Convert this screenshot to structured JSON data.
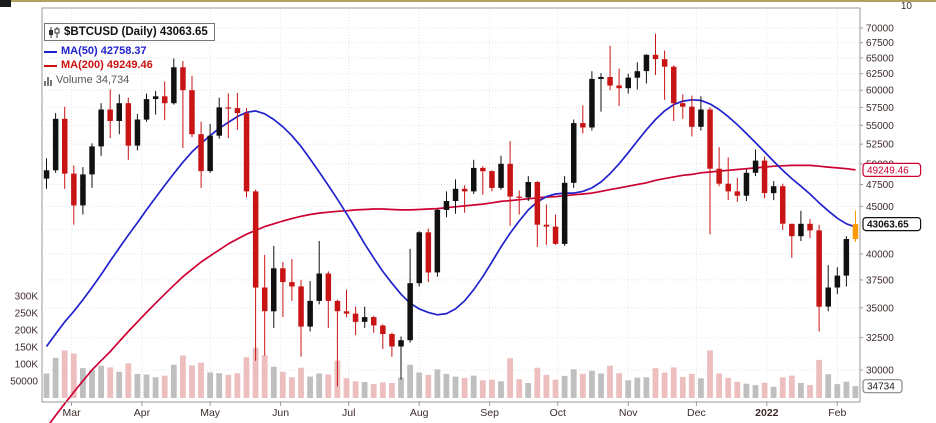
{
  "legend": {
    "symbol": "$BTCUSD (Daily) 43063.65",
    "ma50_label": "MA(50) 42758.37",
    "ma200_label": "MA(200) 49249.46",
    "volume_label": "Volume 34,734"
  },
  "badges": {
    "ma200": "49249.46",
    "last": "43063.65",
    "volume": "34734"
  },
  "axes": {
    "top_right_partial": "10"
  },
  "colors": {
    "up": "#111111",
    "down": "#c81414",
    "last_candle": "#ff9900",
    "ma50": "#2222cc",
    "ma200": "#cc0033",
    "vol_up": "#b9b9b9",
    "vol_down": "#eab8b8",
    "grid": "#e4e4e4",
    "frame": "#999999",
    "axis_text": "#3d2b2b"
  },
  "chart_data": {
    "type": "candlestick",
    "title": "$BTCUSD (Daily) 43063.65",
    "symbol": "$BTCUSD",
    "timeframe": "Daily",
    "last_price": 43063.65,
    "ma50_value": 42758.37,
    "ma200_value": 49249.46,
    "last_volume": 34734,
    "sample_interval_days": 4,
    "start_date": "2021-02-16",
    "y_axis": {
      "min": 30000,
      "max": 70000,
      "step": 2500,
      "scale": "log",
      "side": "right"
    },
    "y_ticks": [
      {
        "value": 70000,
        "label": "70000"
      },
      {
        "value": 67500,
        "label": "67500"
      },
      {
        "value": 65000,
        "label": "65000"
      },
      {
        "value": 62500,
        "label": "62500"
      },
      {
        "value": 60000,
        "label": "60000"
      },
      {
        "value": 57500,
        "label": "57500"
      },
      {
        "value": 55000,
        "label": "55000"
      },
      {
        "value": 52500,
        "label": "52500"
      },
      {
        "value": 50000,
        "label": "50000"
      },
      {
        "value": 47500,
        "label": "47500"
      },
      {
        "value": 45000,
        "label": "45000"
      },
      {
        "value": 42500,
        "label": ""
      },
      {
        "value": 40000,
        "label": "40000"
      },
      {
        "value": 37500,
        "label": "37500"
      },
      {
        "value": 35000,
        "label": "35000"
      },
      {
        "value": 32500,
        "label": "32500"
      },
      {
        "value": 30000,
        "label": "30000"
      }
    ],
    "volume_axis": [
      {
        "label": "300K",
        "value": 300
      },
      {
        "label": "250K",
        "value": 250
      },
      {
        "label": "200K",
        "value": 200
      },
      {
        "label": "150K",
        "value": 150
      },
      {
        "label": "100K",
        "value": 100
      },
      {
        "label": "50000",
        "value": 50
      }
    ],
    "volume_in_thousands": true,
    "x_ticks": [
      {
        "label": "Mar",
        "i": 3.25
      },
      {
        "label": "Apr",
        "i": 11
      },
      {
        "label": "May",
        "i": 18.5
      },
      {
        "label": "Jun",
        "i": 26.25
      },
      {
        "label": "Jul",
        "i": 33.75
      },
      {
        "label": "Aug",
        "i": 41.5
      },
      {
        "label": "Sep",
        "i": 49.25
      },
      {
        "label": "Oct",
        "i": 56.75
      },
      {
        "label": "Nov",
        "i": 64.5
      },
      {
        "label": "Dec",
        "i": 72
      },
      {
        "label": "2022",
        "i": 79.75,
        "bold": true
      },
      {
        "label": "Feb",
        "i": 87.5
      }
    ],
    "candles": [
      [
        48200,
        50700,
        47000,
        49200,
        72
      ],
      [
        49200,
        56700,
        48900,
        55900,
        118
      ],
      [
        55900,
        57600,
        47000,
        48800,
        140
      ],
      [
        48800,
        49800,
        43000,
        45100,
        131
      ],
      [
        45100,
        49600,
        44100,
        48700,
        88
      ],
      [
        48700,
        52600,
        47100,
        52200,
        82
      ],
      [
        52200,
        58100,
        51000,
        57200,
        95
      ],
      [
        57200,
        60100,
        53300,
        55600,
        90
      ],
      [
        55600,
        59400,
        53800,
        58100,
        77
      ],
      [
        58100,
        58900,
        50500,
        52300,
        102
      ],
      [
        52300,
        56600,
        51700,
        55800,
        71
      ],
      [
        55800,
        59500,
        55500,
        58700,
        69
      ],
      [
        58700,
        59900,
        56500,
        59100,
        61
      ],
      [
        59100,
        61300,
        55700,
        58100,
        66
      ],
      [
        58100,
        64900,
        57900,
        63500,
        98
      ],
      [
        63500,
        64500,
        52000,
        60000,
        125
      ],
      [
        60000,
        62200,
        53400,
        53800,
        96
      ],
      [
        53800,
        55500,
        47100,
        49100,
        104
      ],
      [
        49100,
        55200,
        48900,
        53600,
        75
      ],
      [
        53600,
        58900,
        53200,
        57500,
        73
      ],
      [
        57500,
        59500,
        53300,
        57400,
        68
      ],
      [
        57400,
        59600,
        54400,
        56700,
        73
      ],
      [
        56700,
        57400,
        46000,
        46700,
        120
      ],
      [
        46700,
        46900,
        30700,
        36800,
        148
      ],
      [
        36800,
        39900,
        31100,
        34700,
        126
      ],
      [
        34700,
        40800,
        33300,
        38600,
        92
      ],
      [
        38600,
        39200,
        34200,
        37300,
        77
      ],
      [
        37300,
        39500,
        35600,
        36900,
        61
      ],
      [
        36900,
        37500,
        31000,
        33400,
        89
      ],
      [
        33400,
        37400,
        33000,
        35600,
        63
      ],
      [
        35600,
        41300,
        35300,
        38100,
        72
      ],
      [
        38100,
        38300,
        33300,
        35600,
        69
      ],
      [
        35600,
        35700,
        28800,
        34700,
        110
      ],
      [
        34700,
        36600,
        34200,
        34500,
        58
      ],
      [
        34500,
        35100,
        32700,
        33800,
        49
      ],
      [
        33800,
        35100,
        33300,
        34200,
        47
      ],
      [
        34200,
        34300,
        32900,
        33500,
        41
      ],
      [
        33500,
        33600,
        31600,
        32800,
        46
      ],
      [
        32800,
        32900,
        31000,
        31800,
        44
      ],
      [
        31800,
        32600,
        29300,
        32300,
        60
      ],
      [
        32300,
        40500,
        32100,
        37200,
        98
      ],
      [
        37200,
        42300,
        36900,
        42200,
        75
      ],
      [
        42200,
        42600,
        37300,
        38200,
        68
      ],
      [
        38200,
        44700,
        37800,
        44600,
        84
      ],
      [
        44600,
        46700,
        43800,
        45600,
        71
      ],
      [
        45600,
        48100,
        44200,
        47000,
        63
      ],
      [
        47000,
        47400,
        44300,
        46700,
        59
      ],
      [
        46700,
        50500,
        46400,
        49500,
        66
      ],
      [
        49500,
        49700,
        46300,
        49100,
        52
      ],
      [
        49100,
        49200,
        46700,
        47100,
        54
      ],
      [
        47100,
        51000,
        46900,
        50000,
        49
      ],
      [
        50000,
        52900,
        42900,
        46100,
        117
      ],
      [
        46100,
        46800,
        44100,
        46000,
        55
      ],
      [
        46000,
        48500,
        45600,
        47800,
        44
      ],
      [
        47800,
        47900,
        40700,
        43000,
        89
      ],
      [
        43000,
        45200,
        40900,
        42800,
        68
      ],
      [
        42800,
        44100,
        40900,
        41000,
        54
      ],
      [
        41000,
        48500,
        40800,
        47700,
        65
      ],
      [
        47700,
        55800,
        47100,
        55300,
        84
      ],
      [
        55300,
        57800,
        53900,
        54700,
        71
      ],
      [
        54700,
        62900,
        54300,
        61700,
        80
      ],
      [
        61700,
        62600,
        56900,
        62000,
        72
      ],
      [
        62000,
        67000,
        60000,
        60700,
        95
      ],
      [
        60700,
        63300,
        57700,
        60300,
        73
      ],
      [
        60300,
        62500,
        59500,
        61900,
        52
      ],
      [
        61900,
        64300,
        60100,
        62900,
        60
      ],
      [
        62900,
        65600,
        61000,
        65500,
        61
      ],
      [
        65500,
        69000,
        62300,
        64800,
        88
      ],
      [
        64800,
        66200,
        58600,
        63600,
        75
      ],
      [
        63600,
        63800,
        55600,
        58100,
        90
      ],
      [
        58100,
        59400,
        55900,
        57600,
        62
      ],
      [
        57600,
        59200,
        53500,
        54800,
        71
      ],
      [
        54800,
        59100,
        54300,
        57200,
        58
      ],
      [
        57200,
        57500,
        42000,
        49400,
        140
      ],
      [
        49400,
        52100,
        47300,
        47600,
        72
      ],
      [
        47600,
        50800,
        45700,
        46700,
        59
      ],
      [
        46700,
        48300,
        45500,
        46200,
        48
      ],
      [
        46200,
        49300,
        45600,
        48900,
        42
      ],
      [
        48900,
        51800,
        48500,
        50400,
        38
      ],
      [
        50400,
        50900,
        45900,
        46500,
        45
      ],
      [
        46500,
        47900,
        45700,
        47300,
        33
      ],
      [
        47300,
        47600,
        42450,
        43100,
        61
      ],
      [
        43100,
        43100,
        39600,
        41800,
        66
      ],
      [
        41800,
        44500,
        41300,
        43100,
        44
      ],
      [
        43100,
        43600,
        41600,
        42400,
        38
      ],
      [
        42400,
        43000,
        33000,
        35100,
        112
      ],
      [
        35100,
        38900,
        34700,
        36800,
        70
      ],
      [
        36800,
        38700,
        36200,
        37900,
        41
      ],
      [
        37900,
        41800,
        36900,
        41500,
        48
      ],
      [
        41500,
        44500,
        41200,
        43063.65,
        35
      ]
    ],
    "ma50_series": [
      31800,
      32800,
      33800,
      34700,
      35700,
      36800,
      38000,
      39300,
      40600,
      41900,
      43200,
      44600,
      46000,
      47400,
      48800,
      50200,
      51500,
      52600,
      53600,
      54600,
      55400,
      56200,
      56800,
      57000,
      56600,
      55800,
      54800,
      53600,
      52200,
      50600,
      49000,
      47400,
      45800,
      44200,
      42600,
      41000,
      39600,
      38300,
      37200,
      36200,
      35400,
      34900,
      34600,
      34400,
      34500,
      34900,
      35600,
      36600,
      37800,
      39200,
      40700,
      42100,
      43400,
      44600,
      45500,
      46100,
      46400,
      46500,
      46500,
      46700,
      47100,
      47800,
      48800,
      50000,
      51400,
      52900,
      54400,
      55800,
      57000,
      57900,
      58400,
      58600,
      58500,
      58000,
      57200,
      56200,
      55100,
      53900,
      52700,
      51500,
      50300,
      49200,
      48200,
      47300,
      46400,
      45400,
      44500,
      43700,
      43100,
      42758.37
    ],
    "ma200_series": [
      26000,
      26800,
      27600,
      28400,
      29200,
      30000,
      30700,
      31400,
      32200,
      33000,
      33800,
      34600,
      35400,
      36200,
      37000,
      37800,
      38500,
      39200,
      39800,
      40400,
      41000,
      41500,
      42000,
      42400,
      42800,
      43100,
      43400,
      43650,
      43900,
      44100,
      44250,
      44350,
      44450,
      44500,
      44600,
      44650,
      44700,
      44700,
      44650,
      44600,
      44600,
      44650,
      44700,
      44750,
      44850,
      44950,
      45050,
      45150,
      45250,
      45400,
      45550,
      45650,
      45750,
      45850,
      45950,
      46050,
      46100,
      46200,
      46300,
      46400,
      46500,
      46700,
      46900,
      47100,
      47300,
      47500,
      47700,
      48000,
      48200,
      48400,
      48600,
      48700,
      48900,
      49000,
      49100,
      49200,
      49300,
      49400,
      49500,
      49600,
      49700,
      49750,
      49800,
      49800,
      49800,
      49700,
      49600,
      49500,
      49400,
      49249.46
    ]
  }
}
